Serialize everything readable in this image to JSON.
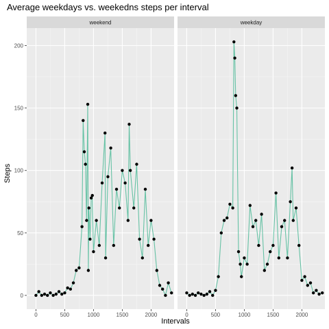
{
  "chart_data": {
    "type": "line",
    "title": "Average weekdays vs. weekedns steps per interval",
    "xlabel": "Intervals",
    "ylabel": "Steps",
    "xlim": [
      -160,
      2400
    ],
    "ylim": [
      -11,
      214
    ],
    "x_ticks": [
      0,
      500,
      1000,
      1500,
      2000
    ],
    "y_ticks": [
      0,
      50,
      100,
      150,
      200
    ],
    "grid": true,
    "colors": {
      "line": "#66c2a5",
      "point": "#000000",
      "panel_bg": "#ebebeb",
      "strip_bg": "#d9d9d9",
      "grid_major": "#ffffff"
    },
    "panels": [
      {
        "strip": "weekend",
        "series": [
          {
            "x": [
              0,
              50,
              100,
              150,
              200,
              250,
              300,
              350,
              400,
              450,
              500,
              550,
              600,
              650,
              700,
              750,
              800,
              820,
              840,
              860,
              880,
              900,
              910,
              920,
              940,
              960,
              980,
              1000,
              1050,
              1100,
              1150,
              1200,
              1210,
              1250,
              1300,
              1350,
              1400,
              1450,
              1500,
              1550,
              1600,
              1620,
              1640,
              1700,
              1750,
              1800,
              1850,
              1900,
              1950,
              2000,
              2050,
              2100,
              2150,
              2200,
              2250,
              2300,
              2355
            ],
            "values": [
              0,
              3,
              0,
              1,
              0,
              2,
              0,
              1,
              3,
              1,
              2,
              6,
              5,
              10,
              20,
              22,
              55,
              140,
              115,
              105,
              60,
              153,
              20,
              70,
              45,
              78,
              80,
              35,
              60,
              40,
              90,
              130,
              30,
              95,
              118,
              40,
              85,
              70,
              100,
              90,
              60,
              137,
              100,
              70,
              105,
              45,
              30,
              85,
              40,
              60,
              45,
              20,
              8,
              5,
              0,
              10,
              2
            ]
          }
        ]
      },
      {
        "strip": "weekday",
        "series": [
          {
            "x": [
              0,
              50,
              100,
              150,
              200,
              250,
              300,
              350,
              400,
              450,
              500,
              550,
              600,
              650,
              700,
              750,
              800,
              820,
              835,
              850,
              870,
              900,
              930,
              950,
              1000,
              1050,
              1100,
              1150,
              1200,
              1250,
              1300,
              1350,
              1400,
              1450,
              1500,
              1550,
              1600,
              1650,
              1700,
              1750,
              1800,
              1830,
              1850,
              1900,
              1950,
              2000,
              2050,
              2100,
              2150,
              2200,
              2250,
              2300,
              2355
            ],
            "values": [
              2,
              0,
              1,
              0,
              2,
              1,
              0,
              1,
              3,
              0,
              4,
              15,
              50,
              60,
              62,
              73,
              70,
              203,
              190,
              160,
              150,
              35,
              25,
              15,
              30,
              25,
              72,
              55,
              60,
              40,
              65,
              20,
              25,
              35,
              40,
              82,
              30,
              55,
              60,
              30,
              75,
              102,
              60,
              70,
              40,
              12,
              15,
              8,
              10,
              2,
              4,
              1,
              2
            ]
          }
        ]
      }
    ]
  }
}
